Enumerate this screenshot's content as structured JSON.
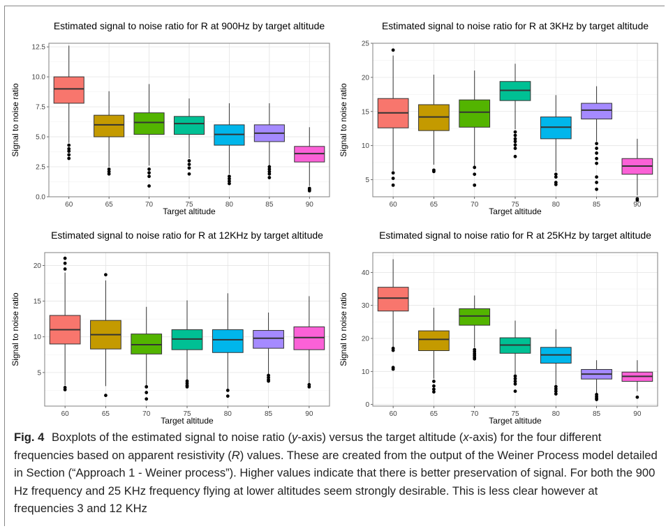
{
  "chart_data": [
    {
      "type": "boxplot",
      "title": "Estimated signal to noise ratio for R at 900Hz by target altitude",
      "xlabel": "Target altitude",
      "ylabel": "Signal to noise ratio",
      "ylim": [
        0,
        12.8
      ],
      "yticks": [
        "0.0",
        "2.5",
        "5.0",
        "7.5",
        "10.0",
        "12.5"
      ],
      "ytick_values": [
        0,
        2.5,
        5,
        7.5,
        10,
        12.5
      ],
      "categories": [
        "60",
        "65",
        "70",
        "75",
        "80",
        "85",
        "90"
      ],
      "colors": [
        "#F8766D",
        "#C49A00",
        "#53B400",
        "#00C094",
        "#00B6EB",
        "#A58AFF",
        "#FB61D7"
      ],
      "boxes": [
        {
          "min": 4.5,
          "q1": 7.8,
          "median": 9.0,
          "q3": 10.0,
          "max": 12.6,
          "outliers": [
            4.3,
            4.0,
            3.8,
            3.5,
            3.2
          ]
        },
        {
          "min": 2.5,
          "q1": 5.0,
          "median": 6.0,
          "q3": 6.8,
          "max": 8.8,
          "outliers": [
            2.3,
            2.1,
            1.9
          ]
        },
        {
          "min": 2.6,
          "q1": 5.2,
          "median": 6.2,
          "q3": 7.0,
          "max": 9.4,
          "outliers": [
            2.3,
            2.0,
            1.7,
            0.9
          ]
        },
        {
          "min": 3.2,
          "q1": 5.2,
          "median": 6.1,
          "q3": 6.7,
          "max": 8.2,
          "outliers": [
            3.0,
            2.7,
            2.4,
            1.9
          ]
        },
        {
          "min": 1.9,
          "q1": 4.3,
          "median": 5.2,
          "q3": 6.0,
          "max": 7.8,
          "outliers": [
            1.7,
            1.5,
            1.3,
            1.1
          ]
        },
        {
          "min": 2.6,
          "q1": 4.6,
          "median": 5.3,
          "q3": 6.0,
          "max": 7.8,
          "outliers": [
            2.5,
            2.3,
            2.1,
            1.9,
            1.6
          ]
        },
        {
          "min": 0.9,
          "q1": 2.9,
          "median": 3.6,
          "q3": 4.2,
          "max": 5.8,
          "outliers": [
            0.7,
            0.6,
            0.5
          ]
        }
      ]
    },
    {
      "type": "boxplot",
      "title": "Estimated signal to noise ratio for R at 3KHz by target altitude",
      "xlabel": "Target altitude",
      "ylabel": "Signal to noise ratio",
      "ylim": [
        2.5,
        25
      ],
      "yticks": [
        "5",
        "10",
        "15",
        "20",
        "25"
      ],
      "ytick_values": [
        5,
        10,
        15,
        20,
        25
      ],
      "categories": [
        "60",
        "65",
        "70",
        "75",
        "80",
        "85",
        "90"
      ],
      "colors": [
        "#F8766D",
        "#C49A00",
        "#53B400",
        "#00C094",
        "#00B6EB",
        "#A58AFF",
        "#FB61D7"
      ],
      "boxes": [
        {
          "min": 6.3,
          "q1": 12.6,
          "median": 14.8,
          "q3": 16.9,
          "max": 23.2,
          "outliers": [
            24.0,
            6.0,
            5.2,
            4.2
          ]
        },
        {
          "min": 7.2,
          "q1": 12.2,
          "median": 14.2,
          "q3": 16.0,
          "max": 20.4,
          "outliers": [
            6.4,
            6.2
          ]
        },
        {
          "min": 7.0,
          "q1": 12.7,
          "median": 14.9,
          "q3": 16.7,
          "max": 21.0,
          "outliers": [
            6.8,
            5.8,
            4.2
          ]
        },
        {
          "min": 12.4,
          "q1": 16.6,
          "median": 18.1,
          "q3": 19.4,
          "max": 22.0,
          "outliers": [
            12.0,
            11.5,
            11.0,
            10.6,
            10.1,
            9.6,
            8.4
          ]
        },
        {
          "min": 6.2,
          "q1": 11.0,
          "median": 12.7,
          "q3": 14.2,
          "max": 17.4,
          "outliers": [
            5.8,
            5.4,
            4.6,
            4.3
          ]
        },
        {
          "min": 10.6,
          "q1": 13.9,
          "median": 15.2,
          "q3": 16.2,
          "max": 18.7,
          "outliers": [
            10.3,
            9.6,
            8.9,
            8.1,
            7.4,
            5.4,
            4.6,
            3.6
          ]
        },
        {
          "min": 2.7,
          "q1": 5.8,
          "median": 7.0,
          "q3": 8.1,
          "max": 11.0,
          "outliers": [
            2.2,
            2.0
          ]
        }
      ]
    },
    {
      "type": "boxplot",
      "title": "Estimated signal to noise ratio for R at 12KHz by target altitude",
      "xlabel": "Target altitude",
      "ylabel": "Signal to noise ratio",
      "ylim": [
        0.3,
        21.8
      ],
      "yticks": [
        "5",
        "10",
        "15",
        "20"
      ],
      "ytick_values": [
        5,
        10,
        15,
        20
      ],
      "categories": [
        "60",
        "65",
        "70",
        "75",
        "80",
        "85",
        "90"
      ],
      "colors": [
        "#F8766D",
        "#C49A00",
        "#53B400",
        "#00C094",
        "#00B6EB",
        "#A58AFF",
        "#FB61D7"
      ],
      "boxes": [
        {
          "min": 3.2,
          "q1": 9.0,
          "median": 11.0,
          "q3": 13.0,
          "max": 19.0,
          "outliers": [
            21.0,
            20.3,
            19.5,
            2.9,
            2.6
          ]
        },
        {
          "min": 3.1,
          "q1": 8.3,
          "median": 10.3,
          "q3": 12.3,
          "max": 17.9,
          "outliers": [
            18.7,
            1.8
          ]
        },
        {
          "min": 3.1,
          "q1": 7.6,
          "median": 8.9,
          "q3": 10.4,
          "max": 14.2,
          "outliers": [
            3.0,
            2.2,
            1.3
          ]
        },
        {
          "min": 4.0,
          "q1": 8.2,
          "median": 9.7,
          "q3": 11.0,
          "max": 15.1,
          "outliers": [
            3.8,
            3.5,
            3.2,
            3.0
          ]
        },
        {
          "min": 2.6,
          "q1": 7.8,
          "median": 9.6,
          "q3": 11.0,
          "max": 16.1,
          "outliers": [
            2.5,
            1.7
          ]
        },
        {
          "min": 4.7,
          "q1": 8.4,
          "median": 9.8,
          "q3": 10.9,
          "max": 13.4,
          "outliers": [
            4.6,
            4.3,
            4.0,
            3.8
          ]
        },
        {
          "min": 3.4,
          "q1": 8.2,
          "median": 9.9,
          "q3": 11.4,
          "max": 15.7,
          "outliers": [
            3.3,
            3.0
          ]
        }
      ]
    },
    {
      "type": "boxplot",
      "title": "Estimated signal to noise ratio for R at 25KHz by target altitude",
      "xlabel": "Target altitude",
      "ylabel": "Signal to noise ratio",
      "ylim": [
        -0.5,
        46
      ],
      "yticks": [
        "0",
        "10",
        "20",
        "30",
        "40"
      ],
      "ytick_values": [
        0,
        10,
        20,
        30,
        40
      ],
      "categories": [
        "60",
        "65",
        "70",
        "75",
        "80",
        "85",
        "90"
      ],
      "colors": [
        "#F8766D",
        "#C49A00",
        "#53B400",
        "#00C094",
        "#00B6EB",
        "#A58AFF",
        "#FB61D7"
      ],
      "boxes": [
        {
          "min": 17.5,
          "q1": 28.3,
          "median": 32.2,
          "q3": 35.5,
          "max": 44.0,
          "outliers": [
            17.0,
            16.4,
            11.2,
            10.7
          ]
        },
        {
          "min": 7.8,
          "q1": 16.3,
          "median": 19.7,
          "q3": 22.3,
          "max": 29.3,
          "outliers": [
            7.0,
            5.6,
            4.6,
            3.8
          ]
        },
        {
          "min": 17.2,
          "q1": 24.0,
          "median": 26.8,
          "q3": 29.0,
          "max": 33.0,
          "outliers": [
            16.6,
            16.0,
            15.4,
            14.9,
            14.3,
            13.8
          ]
        },
        {
          "min": 9.2,
          "q1": 15.5,
          "median": 18.0,
          "q3": 20.2,
          "max": 25.4,
          "outliers": [
            8.6,
            7.8,
            7.0,
            6.2,
            4.0
          ]
        },
        {
          "min": 6.0,
          "q1": 12.5,
          "median": 15.0,
          "q3": 17.3,
          "max": 22.8,
          "outliers": [
            5.4,
            4.7,
            4.0,
            3.2
          ]
        },
        {
          "min": 3.4,
          "q1": 7.7,
          "median": 9.2,
          "q3": 10.6,
          "max": 13.4,
          "outliers": [
            3.0,
            2.4,
            1.9,
            1.5
          ]
        },
        {
          "min": 4.0,
          "q1": 7.0,
          "median": 8.5,
          "q3": 9.8,
          "max": 13.4,
          "outliers": [
            2.2
          ]
        }
      ]
    }
  ],
  "caption": {
    "label": "Fig. 4",
    "p1": "Boxplots of the estimated signal to noise ratio (",
    "y": "y",
    "p2": "-axis) versus the target altitude (",
    "x": "x",
    "p3": "-axis) for the four different frequencies based on apparent resistivity (",
    "r": "R",
    "p4": ") values. These are created from the output of the Weiner Process model detailed in Section (“Approach 1 - Weiner process”). Higher values indicate that there is better preservation of signal. For both the 900 Hz frequency and 25 KHz frequency flying at lower altitudes seem strongly desirable. This is less clear however at frequencies 3 and 12 KHz"
  }
}
